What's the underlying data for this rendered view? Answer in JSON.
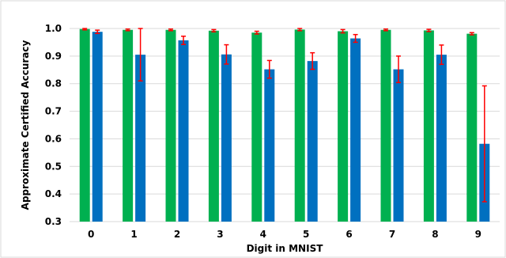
{
  "chart_data": {
    "type": "bar",
    "title": "",
    "xlabel": "Digit in MNIST",
    "ylabel": "Approximate Certified Accuracy",
    "categories": [
      "0",
      "1",
      "2",
      "3",
      "4",
      "5",
      "6",
      "7",
      "8",
      "9"
    ],
    "ylim": [
      0.3,
      1.0
    ],
    "yticks": [
      "0.3",
      "0.4",
      "0.5",
      "0.6",
      "0.7",
      "0.8",
      "0.9",
      "1.0"
    ],
    "grid": true,
    "legend": "none",
    "series": [
      {
        "color": "#00b050",
        "values": [
          0.998,
          0.995,
          0.995,
          0.992,
          0.985,
          0.996,
          0.99,
          0.995,
          0.993,
          0.981
        ],
        "errors": [
          0.003,
          0.003,
          0.003,
          0.004,
          0.005,
          0.004,
          0.006,
          0.003,
          0.004,
          0.004
        ]
      },
      {
        "color": "#0070c0",
        "values": [
          0.988,
          0.905,
          0.957,
          0.906,
          0.852,
          0.882,
          0.964,
          0.852,
          0.905,
          0.582
        ],
        "errors": [
          0.006,
          0.095,
          0.015,
          0.035,
          0.032,
          0.03,
          0.014,
          0.048,
          0.035,
          0.21
        ]
      }
    ],
    "error_color": "#ff0000",
    "gridline_color": "#d9d9d9"
  }
}
